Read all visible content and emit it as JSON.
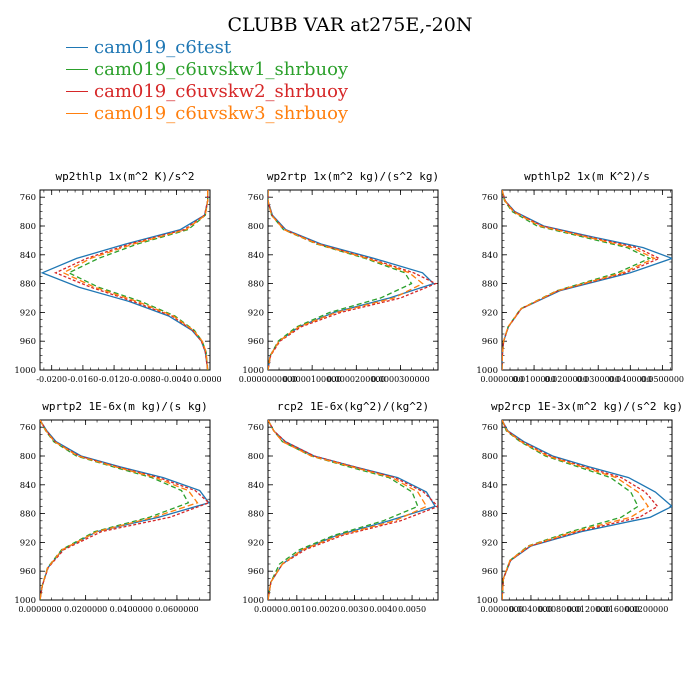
{
  "figure": {
    "title": "CLUBB VAR at275E,-20N"
  },
  "legend": [
    {
      "label": "cam019_c6test",
      "color": "#1f77b4"
    },
    {
      "label": "cam019_c6uvskw1_shrbuoy",
      "color": "#2ca02c"
    },
    {
      "label": "cam019_c6uvskw2_shrbuoy",
      "color": "#d62728"
    },
    {
      "label": "cam019_c6uvskw3_shrbuoy",
      "color": "#ff7f0e"
    }
  ],
  "chart_data": [
    {
      "type": "line",
      "title": "wp2thlp   1x(m^2 K)/s^2",
      "xlim": [
        -0.0215,
        0.0003
      ],
      "ylim": [
        1000,
        750
      ],
      "xticks": [
        -0.02,
        -0.016,
        -0.012,
        -0.008,
        -0.004,
        0.0
      ],
      "xtick_labels": [
        "-0.0200",
        "-0.0160",
        "-0.0120",
        "-0.0080",
        "-0.0040",
        "0.0000"
      ],
      "yticks": [
        760,
        800,
        840,
        880,
        920,
        960,
        1000
      ],
      "series": [
        {
          "name": "cam019_c6test",
          "x": [
            0.0,
            0.0,
            -0.0004,
            -0.0035,
            -0.0105,
            -0.0168,
            -0.0212,
            -0.0165,
            -0.01,
            -0.005,
            -0.002,
            -0.0008,
            -0.0003,
            0.0
          ],
          "y": [
            750,
            765,
            785,
            805,
            825,
            845,
            865,
            885,
            905,
            925,
            945,
            960,
            975,
            1000
          ]
        },
        {
          "name": "cam019_c6uvskw1_shrbuoy",
          "x": [
            0.0,
            0.0,
            -0.0003,
            -0.0025,
            -0.009,
            -0.014,
            -0.0178,
            -0.014,
            -0.0085,
            -0.0042,
            -0.0017,
            -0.0007,
            -0.0002,
            0.0
          ],
          "y": [
            750,
            765,
            785,
            805,
            825,
            845,
            865,
            885,
            905,
            925,
            945,
            960,
            975,
            1000
          ]
        },
        {
          "name": "cam019_c6uvskw2_shrbuoy",
          "x": [
            0.0,
            0.0,
            -0.0004,
            -0.003,
            -0.01,
            -0.0155,
            -0.0195,
            -0.015,
            -0.0095,
            -0.0046,
            -0.0019,
            -0.0008,
            -0.0003,
            0.0
          ],
          "y": [
            750,
            765,
            785,
            805,
            825,
            845,
            865,
            885,
            905,
            925,
            945,
            960,
            975,
            1000
          ]
        },
        {
          "name": "cam019_c6uvskw3_shrbuoy",
          "x": [
            0.0,
            0.0,
            -0.0003,
            -0.0028,
            -0.0095,
            -0.015,
            -0.0185,
            -0.0145,
            -0.009,
            -0.0044,
            -0.0018,
            -0.0007,
            -0.0002,
            0.0
          ],
          "y": [
            750,
            765,
            785,
            805,
            825,
            845,
            865,
            885,
            905,
            925,
            945,
            960,
            975,
            1000
          ]
        }
      ]
    },
    {
      "type": "line",
      "title": "wp2rtp   1x(m^2 kg)/(s^2 kg)",
      "xlim": [
        0.0,
        3.85e-05
      ],
      "ylim": [
        1000,
        750
      ],
      "xticks": [
        0.0,
        1e-05,
        2e-05,
        3e-05
      ],
      "xtick_labels": [
        "0.0000000000",
        "0.0000100000",
        "0.0000200000",
        "0.0000300000"
      ],
      "yticks": [
        760,
        800,
        840,
        880,
        920,
        960,
        1000
      ],
      "series": [
        {
          "name": "cam019_c6test",
          "x": [
            0.0,
            0.0,
            1e-06,
            4e-06,
            1.2e-05,
            2.4e-05,
            3.5e-05,
            3.75e-05,
            2.75e-05,
            1.5e-05,
            7e-06,
            2.5e-06,
            5e-07,
            0.0
          ],
          "y": [
            750,
            765,
            785,
            805,
            825,
            845,
            865,
            880,
            900,
            920,
            940,
            960,
            980,
            1000
          ]
        },
        {
          "name": "cam019_c6uvskw1_shrbuoy",
          "x": [
            0.0,
            0.0,
            8e-07,
            3.5e-06,
            1.1e-05,
            2.2e-05,
            3.1e-05,
            3.25e-05,
            2.55e-05,
            1.4e-05,
            6.5e-06,
            2.3e-06,
            5e-07,
            0.0
          ],
          "y": [
            750,
            765,
            785,
            805,
            825,
            845,
            865,
            880,
            900,
            920,
            940,
            960,
            980,
            1000
          ]
        },
        {
          "name": "cam019_c6uvskw2_shrbuoy",
          "x": [
            0.0,
            0.0,
            9e-07,
            3.8e-06,
            1.15e-05,
            2.3e-05,
            3.3e-05,
            3.8e-05,
            3e-05,
            1.65e-05,
            7.5e-06,
            2.7e-06,
            6e-07,
            0.0
          ],
          "y": [
            750,
            765,
            785,
            805,
            825,
            845,
            865,
            880,
            900,
            920,
            940,
            960,
            980,
            1000
          ]
        },
        {
          "name": "cam019_c6uvskw3_shrbuoy",
          "x": [
            0.0,
            0.0,
            8e-07,
            3.6e-06,
            1.12e-05,
            2.25e-05,
            3.2e-05,
            3.5e-05,
            2.85e-05,
            1.55e-05,
            7e-06,
            2.5e-06,
            5e-07,
            0.0
          ],
          "y": [
            750,
            765,
            785,
            805,
            825,
            845,
            865,
            880,
            900,
            920,
            940,
            960,
            980,
            1000
          ]
        }
      ]
    },
    {
      "type": "line",
      "title": "wpthlp2   1x(m K^2)/s",
      "xlim": [
        0.0,
        0.053
      ],
      "ylim": [
        1000,
        750
      ],
      "xticks": [
        0.0,
        0.01,
        0.02,
        0.03,
        0.04,
        0.05
      ],
      "xtick_labels": [
        "0.0000000",
        "0.0100000",
        "0.0200000",
        "0.0300000",
        "0.0400000",
        "0.0500000"
      ],
      "yticks": [
        760,
        800,
        840,
        880,
        920,
        960,
        1000
      ],
      "series": [
        {
          "name": "cam019_c6test",
          "x": [
            0.0,
            0.001,
            0.004,
            0.013,
            0.028,
            0.044,
            0.053,
            0.04,
            0.018,
            0.006,
            0.002,
            0.0005,
            0.0001,
            0.0
          ],
          "y": [
            750,
            765,
            780,
            800,
            815,
            830,
            845,
            865,
            890,
            915,
            940,
            960,
            980,
            1000
          ]
        },
        {
          "name": "cam019_c6uvskw1_shrbuoy",
          "x": [
            0.0,
            0.0008,
            0.0032,
            0.011,
            0.025,
            0.039,
            0.046,
            0.036,
            0.017,
            0.0058,
            0.0019,
            0.0005,
            0.0001,
            0.0
          ],
          "y": [
            750,
            765,
            780,
            800,
            815,
            830,
            845,
            865,
            890,
            915,
            940,
            960,
            980,
            1000
          ]
        },
        {
          "name": "cam019_c6uvskw2_shrbuoy",
          "x": [
            0.0,
            0.001,
            0.0038,
            0.0125,
            0.027,
            0.042,
            0.049,
            0.0385,
            0.0175,
            0.006,
            0.002,
            0.0005,
            0.0001,
            0.0
          ],
          "y": [
            750,
            765,
            780,
            800,
            815,
            830,
            845,
            865,
            890,
            915,
            940,
            960,
            980,
            1000
          ]
        },
        {
          "name": "cam019_c6uvskw3_shrbuoy",
          "x": [
            0.0,
            0.0009,
            0.0035,
            0.0118,
            0.026,
            0.0405,
            0.0475,
            0.0375,
            0.0172,
            0.0059,
            0.0019,
            0.0005,
            0.0001,
            0.0
          ],
          "y": [
            750,
            765,
            780,
            800,
            815,
            830,
            845,
            865,
            890,
            915,
            940,
            960,
            980,
            1000
          ]
        }
      ]
    },
    {
      "type": "line",
      "title": "wprtp2   1E-6x(m kg)/(s kg)",
      "xlim": [
        0.0,
        0.0745
      ],
      "ylim": [
        1000,
        750
      ],
      "xticks": [
        0.0,
        0.02,
        0.04,
        0.06
      ],
      "xtick_labels": [
        "0.0000000",
        "0.0200000",
        "0.0400000",
        "0.0600000"
      ],
      "yticks": [
        760,
        800,
        840,
        880,
        920,
        960,
        1000
      ],
      "series": [
        {
          "name": "cam019_c6test",
          "x": [
            0.0,
            0.003,
            0.007,
            0.018,
            0.035,
            0.054,
            0.07,
            0.074,
            0.052,
            0.025,
            0.01,
            0.0035,
            0.001,
            0.0
          ],
          "y": [
            750,
            765,
            780,
            800,
            815,
            830,
            848,
            865,
            885,
            905,
            930,
            955,
            980,
            1000
          ]
        },
        {
          "name": "cam019_c6uvskw1_shrbuoy",
          "x": [
            0.0,
            0.0025,
            0.006,
            0.016,
            0.032,
            0.049,
            0.062,
            0.065,
            0.048,
            0.024,
            0.0095,
            0.0033,
            0.001,
            0.0
          ],
          "y": [
            750,
            765,
            780,
            800,
            815,
            830,
            848,
            865,
            885,
            905,
            930,
            955,
            980,
            1000
          ]
        },
        {
          "name": "cam019_c6uvskw2_shrbuoy",
          "x": [
            0.0,
            0.0028,
            0.0066,
            0.0172,
            0.034,
            0.052,
            0.068,
            0.074,
            0.057,
            0.027,
            0.0105,
            0.0036,
            0.001,
            0.0
          ],
          "y": [
            750,
            765,
            780,
            800,
            815,
            830,
            848,
            865,
            885,
            905,
            930,
            955,
            980,
            1000
          ]
        },
        {
          "name": "cam019_c6uvskw3_shrbuoy",
          "x": [
            0.0,
            0.0026,
            0.0063,
            0.0166,
            0.033,
            0.0505,
            0.065,
            0.069,
            0.05,
            0.025,
            0.0098,
            0.0034,
            0.001,
            0.0
          ],
          "y": [
            750,
            765,
            780,
            800,
            815,
            830,
            848,
            865,
            885,
            905,
            930,
            955,
            980,
            1000
          ]
        }
      ]
    },
    {
      "type": "line",
      "title": "rcp2   1E-6x(kg^2)/(kg^2)",
      "xlim": [
        0.0,
        0.0059
      ],
      "ylim": [
        1000,
        750
      ],
      "xticks": [
        0.0,
        0.001,
        0.002,
        0.003,
        0.004,
        0.005
      ],
      "xtick_labels": [
        "0.0000",
        "0.0010",
        "0.0020",
        "0.0030",
        "0.0040",
        "0.0050"
      ],
      "yticks": [
        760,
        800,
        840,
        880,
        920,
        960,
        1000
      ],
      "series": [
        {
          "name": "cam019_c6test",
          "x": [
            0.0,
            0.0002,
            0.0006,
            0.0016,
            0.003,
            0.0045,
            0.0055,
            0.0058,
            0.0042,
            0.0024,
            0.0012,
            0.0005,
            0.0001,
            0.0
          ],
          "y": [
            750,
            765,
            780,
            800,
            815,
            830,
            850,
            870,
            890,
            910,
            930,
            950,
            975,
            1000
          ]
        },
        {
          "name": "cam019_c6uvskw1_shrbuoy",
          "x": [
            0.0,
            0.0002,
            0.0005,
            0.0015,
            0.0028,
            0.0042,
            0.005,
            0.0052,
            0.004,
            0.0023,
            0.0011,
            0.0004,
            0.0001,
            0.0
          ],
          "y": [
            750,
            765,
            780,
            800,
            815,
            830,
            850,
            870,
            890,
            910,
            930,
            950,
            975,
            1000
          ]
        },
        {
          "name": "cam019_c6uvskw2_shrbuoy",
          "x": [
            0.0,
            0.0002,
            0.0006,
            0.0016,
            0.003,
            0.0044,
            0.0054,
            0.0059,
            0.0046,
            0.0026,
            0.0013,
            0.0005,
            0.0001,
            0.0
          ],
          "y": [
            750,
            765,
            780,
            800,
            815,
            830,
            850,
            870,
            890,
            910,
            930,
            950,
            975,
            1000
          ]
        },
        {
          "name": "cam019_c6uvskw3_shrbuoy",
          "x": [
            0.0,
            0.0002,
            0.0005,
            0.0015,
            0.0029,
            0.0043,
            0.0052,
            0.0055,
            0.0044,
            0.0025,
            0.0012,
            0.0005,
            0.0001,
            0.0
          ],
          "y": [
            750,
            765,
            780,
            800,
            815,
            830,
            850,
            870,
            890,
            910,
            930,
            950,
            975,
            1000
          ]
        }
      ]
    },
    {
      "type": "line",
      "title": "wp2rcp   1E-3x(m^2 kg)/(s^2 kg)",
      "xlim": [
        0.0,
        0.0235
      ],
      "ylim": [
        1000,
        750
      ],
      "xticks": [
        0.0,
        0.004,
        0.008,
        0.012,
        0.016,
        0.02
      ],
      "xtick_labels": [
        "0.0000000",
        "0.0040000",
        "0.0080000",
        "0.0120000",
        "0.0160000",
        "0.0200000"
      ],
      "yticks": [
        760,
        800,
        840,
        880,
        920,
        960,
        1000
      ],
      "series": [
        {
          "name": "cam019_c6test",
          "x": [
            0.0,
            0.0008,
            0.003,
            0.007,
            0.012,
            0.0175,
            0.0212,
            0.0235,
            0.0205,
            0.011,
            0.004,
            0.0012,
            0.0002,
            0.0
          ],
          "y": [
            750,
            765,
            780,
            800,
            815,
            830,
            850,
            870,
            885,
            905,
            925,
            945,
            970,
            1000
          ]
        },
        {
          "name": "cam019_c6uvskw1_shrbuoy",
          "x": [
            0.0,
            0.0006,
            0.0025,
            0.006,
            0.0105,
            0.015,
            0.0178,
            0.0188,
            0.0165,
            0.0095,
            0.0036,
            0.0011,
            0.0002,
            0.0
          ],
          "y": [
            750,
            765,
            780,
            800,
            815,
            830,
            850,
            870,
            885,
            905,
            925,
            945,
            970,
            1000
          ]
        },
        {
          "name": "cam019_c6uvskw2_shrbuoy",
          "x": [
            0.0,
            0.0007,
            0.0028,
            0.0066,
            0.0114,
            0.0165,
            0.0198,
            0.0215,
            0.019,
            0.0105,
            0.0039,
            0.0012,
            0.0002,
            0.0
          ],
          "y": [
            750,
            765,
            780,
            800,
            815,
            830,
            850,
            870,
            885,
            905,
            925,
            945,
            970,
            1000
          ]
        },
        {
          "name": "cam019_c6uvskw3_shrbuoy",
          "x": [
            0.0,
            0.0007,
            0.0026,
            0.0063,
            0.011,
            0.0158,
            0.0188,
            0.0202,
            0.0178,
            0.01,
            0.0037,
            0.0011,
            0.0002,
            0.0
          ],
          "y": [
            750,
            765,
            780,
            800,
            815,
            830,
            850,
            870,
            885,
            905,
            925,
            945,
            970,
            1000
          ]
        }
      ]
    }
  ]
}
